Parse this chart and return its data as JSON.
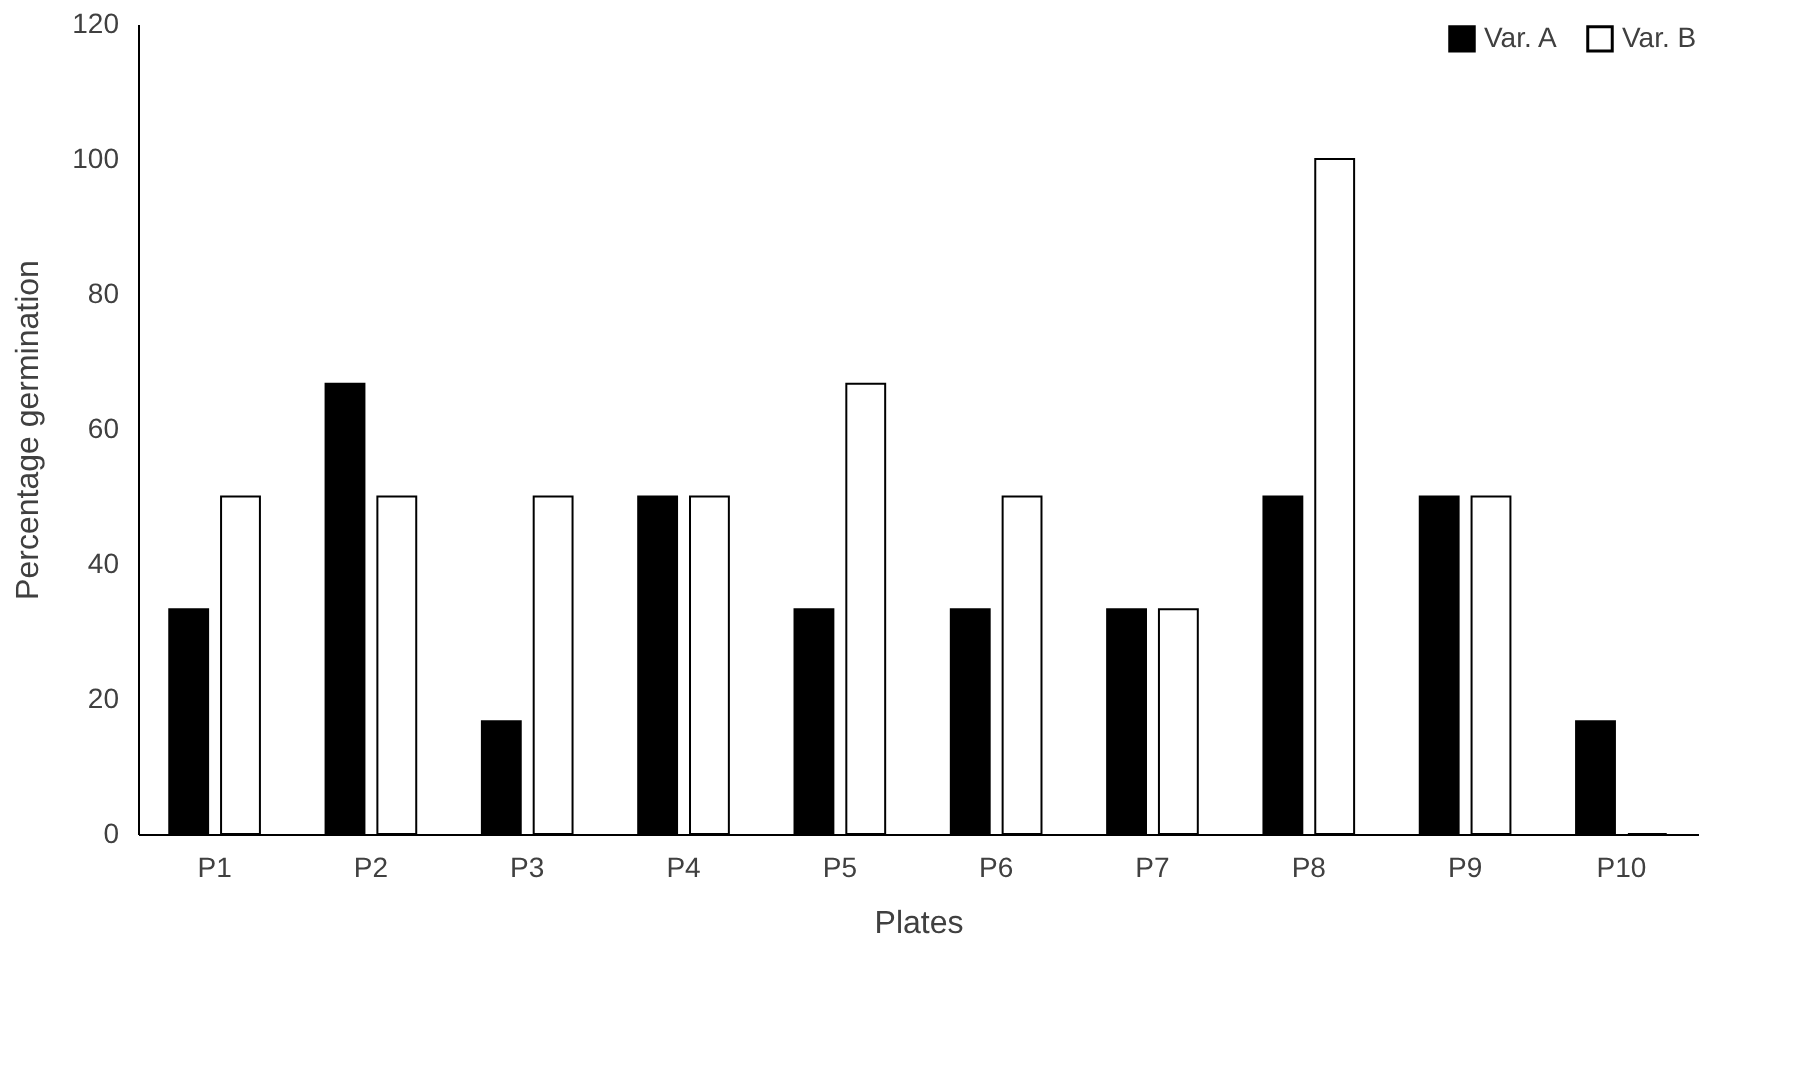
{
  "chart_data": {
    "type": "bar",
    "xlabel": "Plates",
    "ylabel": "Percentage germination",
    "categories": [
      "P1",
      "P2",
      "P3",
      "P4",
      "P5",
      "P6",
      "P7",
      "P8",
      "P9",
      "P10"
    ],
    "series": [
      {
        "name": "Var. A",
        "color": "#000000",
        "values": [
          33.3,
          66.7,
          16.7,
          50,
          33.3,
          33.3,
          33.3,
          50,
          50,
          16.7
        ]
      },
      {
        "name": "Var. B",
        "color": "#ffffff",
        "values": [
          50,
          50,
          50,
          50,
          66.7,
          50,
          33.3,
          100,
          50,
          0
        ]
      }
    ],
    "ylim": [
      0,
      120
    ],
    "yticks": [
      0,
      20,
      40,
      60,
      80,
      100,
      120
    ],
    "grid": false,
    "legend": "top right"
  }
}
